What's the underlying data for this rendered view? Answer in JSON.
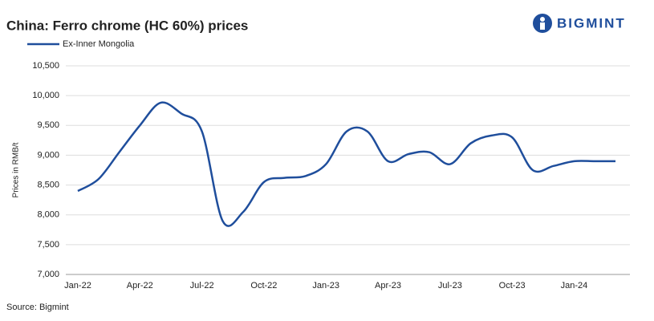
{
  "chart_data": {
    "type": "line",
    "title": "China: Ferro chrome (HC 60%) prices",
    "y_axis_label": "Prices in RMB/t",
    "source": "Source: Bigmint",
    "brand": "BIGMINT",
    "categories": [
      "Jan-22",
      null,
      null,
      "Apr-22",
      null,
      null,
      "Jul-22",
      null,
      null,
      "Oct-22",
      null,
      null,
      "Jan-23",
      null,
      null,
      "Apr-23",
      null,
      null,
      "Jul-23",
      null,
      null,
      "Oct-23",
      null,
      null,
      "Jan-24",
      null,
      null
    ],
    "series": [
      {
        "name": "Ex-Inner Mongolia",
        "color": "#1f4e9c",
        "values": [
          8400,
          8600,
          9050,
          9500,
          9880,
          9700,
          9400,
          7900,
          8050,
          8550,
          8620,
          8650,
          8850,
          9400,
          9400,
          8900,
          9020,
          9050,
          8850,
          9200,
          9330,
          9300,
          8750,
          8820,
          8900,
          8900,
          8900
        ]
      }
    ],
    "ylim": [
      7000,
      10500
    ],
    "yticks": [
      {
        "value": 7000,
        "label": "7,000"
      },
      {
        "value": 7500,
        "label": "7,500"
      },
      {
        "value": 8000,
        "label": "8,000"
      },
      {
        "value": 8500,
        "label": "8,500"
      },
      {
        "value": 9000,
        "label": "9,000"
      },
      {
        "value": 9500,
        "label": "9,500"
      },
      {
        "value": 10000,
        "label": "10,000"
      },
      {
        "value": 10500,
        "label": "10,500"
      }
    ],
    "grid": true
  }
}
